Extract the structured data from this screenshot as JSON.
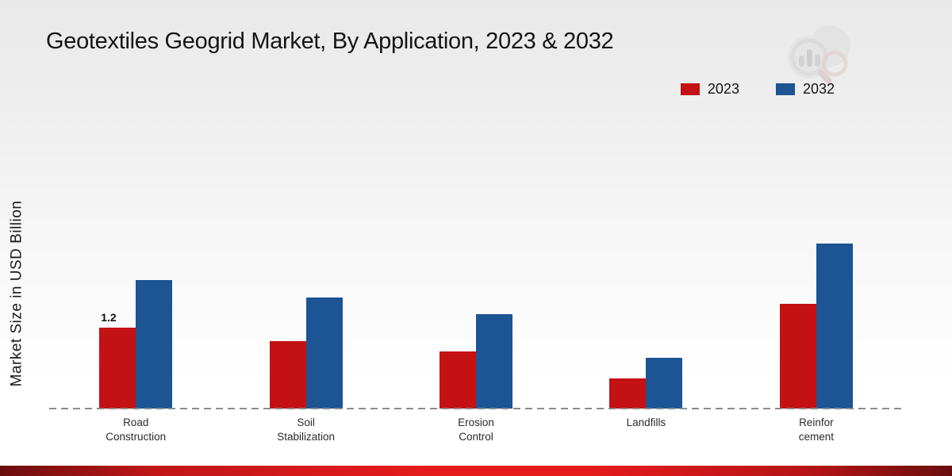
{
  "title": "Geotextiles Geogrid Market, By Application, 2023 & 2032",
  "ylabel": "Market Size in USD Billion",
  "legend": {
    "items": [
      {
        "label": "2023",
        "color": "#c41113"
      },
      {
        "label": "2032",
        "color": "#1c5494"
      }
    ]
  },
  "logo": {
    "icon": "magnifier-bar-chart-watermark"
  },
  "chart_data": {
    "type": "bar",
    "title": "Geotextiles Geogrid Market, By Application, 2023 & 2032",
    "xlabel": "",
    "ylabel": "Market Size in USD Billion",
    "categories": [
      "Road Construction",
      "Soil Stabilization",
      "Erosion Control",
      "Landfills",
      "Reinforcement"
    ],
    "category_label_lines": [
      [
        "Road",
        "Construction"
      ],
      [
        "Soil",
        "Stabilization"
      ],
      [
        "Erosion",
        "Control"
      ],
      [
        "Landfills"
      ],
      [
        "Reinfor",
        "cement"
      ]
    ],
    "series": [
      {
        "name": "2023",
        "color": "#c41113",
        "values": [
          1.2,
          1.0,
          0.85,
          0.45,
          1.55
        ]
      },
      {
        "name": "2032",
        "color": "#1c5494",
        "values": [
          1.9,
          1.65,
          1.4,
          0.75,
          2.45
        ]
      }
    ],
    "annotations": [
      {
        "series": 0,
        "index": 0,
        "text": "1.2"
      }
    ],
    "ylim": [
      0,
      2.6
    ],
    "grid": false,
    "legend_position": "top-right",
    "baseline_style": "dashed",
    "units": "USD Billion"
  }
}
